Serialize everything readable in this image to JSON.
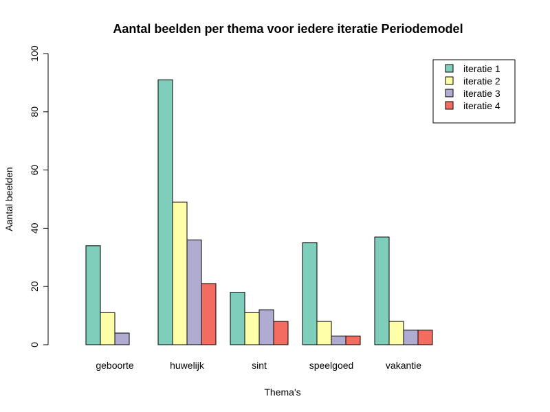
{
  "chart_data": {
    "type": "bar",
    "title": "Aantal beelden per thema voor iedere iteratie Periodemodel",
    "xlabel": "Thema's",
    "ylabel": "Aantal beelden",
    "ylim": [
      0,
      100
    ],
    "yticks": [
      "0",
      "20",
      "40",
      "60",
      "80",
      "100"
    ],
    "grid": false,
    "legend_position": "top-right",
    "categories": [
      "geboorte",
      "huwelijk",
      "sint",
      "speelgoed",
      "vakantie"
    ],
    "series": [
      {
        "name": "iteratie 1",
        "color": "#7FCDBB",
        "values": [
          34,
          91,
          18,
          35,
          37
        ]
      },
      {
        "name": "iteratie 2",
        "color": "#FFFFAA",
        "values": [
          11,
          49,
          11,
          8,
          8
        ]
      },
      {
        "name": "iteratie 3",
        "color": "#B0ABD0",
        "values": [
          4,
          36,
          12,
          3,
          5
        ]
      },
      {
        "name": "iteratie 4",
        "color": "#F46B5F",
        "values": [
          0,
          21,
          8,
          3,
          5
        ]
      }
    ]
  }
}
